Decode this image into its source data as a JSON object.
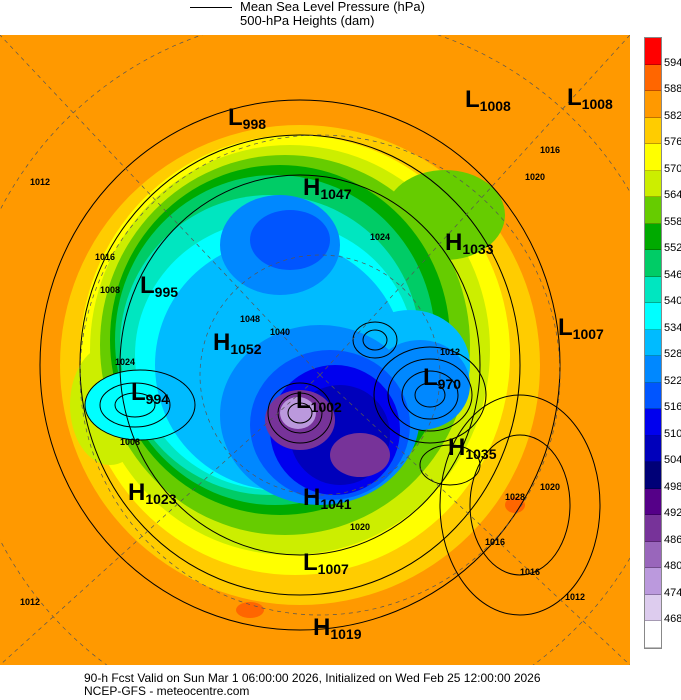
{
  "legend": {
    "line_label": "Mean Sea Level Pressure (hPa)",
    "fill_label": "500-hPa Heights (dam)"
  },
  "colorbar": {
    "labels": [
      "594",
      "588",
      "582",
      "576",
      "570",
      "564",
      "558",
      "552",
      "546",
      "540",
      "534",
      "528",
      "522",
      "516",
      "510",
      "504",
      "498",
      "492",
      "486",
      "480",
      "474",
      "468"
    ],
    "colors": [
      "#ff0000",
      "#ff6600",
      "#ff9900",
      "#ffcc00",
      "#ffff00",
      "#ccee00",
      "#66cc00",
      "#00aa00",
      "#00cc66",
      "#00e6c0",
      "#00ffff",
      "#00bbff",
      "#0088ff",
      "#0055ff",
      "#0000ee",
      "#0000bb",
      "#000077",
      "#550088",
      "#773399",
      "#9966bb",
      "#bb99dd",
      "#ddccee",
      "#ffffff"
    ]
  },
  "centers": [
    {
      "type": "L",
      "value": "998"
    },
    {
      "type": "L",
      "value": "1008"
    },
    {
      "type": "L",
      "value": "1008"
    },
    {
      "type": "H",
      "value": "1047"
    },
    {
      "type": "H",
      "value": "1033"
    },
    {
      "type": "L",
      "value": "995"
    },
    {
      "type": "H",
      "value": "1052"
    },
    {
      "type": "L",
      "value": "1007"
    },
    {
      "type": "L",
      "value": "994"
    },
    {
      "type": "L",
      "value": "1002"
    },
    {
      "type": "L",
      "value": "970"
    },
    {
      "type": "H",
      "value": "1035"
    },
    {
      "type": "H",
      "value": "1023"
    },
    {
      "type": "H",
      "value": "1041"
    },
    {
      "type": "L",
      "value": "1007"
    },
    {
      "type": "H",
      "value": "1019"
    }
  ],
  "isobar_labels": [
    "1008",
    "1012",
    "1016",
    "1020",
    "1024",
    "1028",
    "1040",
    "1048",
    "1012",
    "1016",
    "1020",
    "1024",
    "1016",
    "1012",
    "1020",
    "1016",
    "1012",
    "1008"
  ],
  "footer": {
    "line1": "90-h Fcst Valid on Sun Mar  1 06:00:00 2026, Initialized on Wed Feb 25 12:00:00 2026",
    "line2": "NCEP-GFS  - meteocentre.com"
  }
}
